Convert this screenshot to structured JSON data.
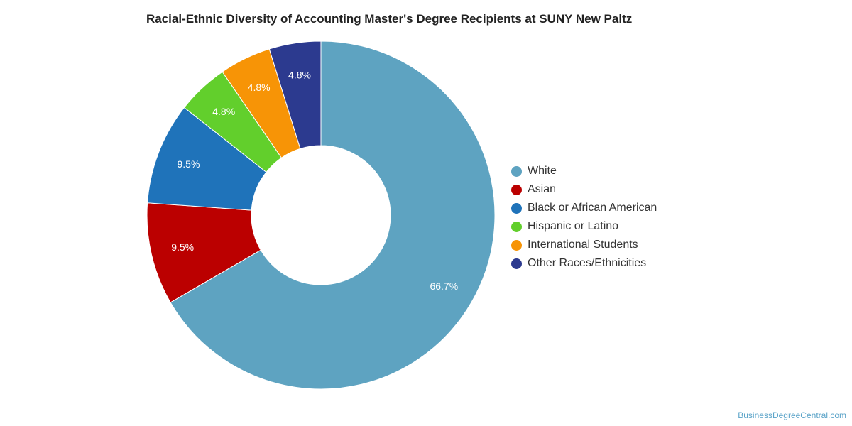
{
  "chart_data": {
    "type": "pie",
    "donut": true,
    "title": "Racial-Ethnic Diversity of Accounting Master's Degree Recipients at SUNY New Paltz",
    "categories": [
      "White",
      "Asian",
      "Black or African American",
      "Hispanic or Latino",
      "International Students",
      "Other Races/Ethnicities"
    ],
    "values": [
      66.7,
      9.5,
      9.5,
      4.8,
      4.8,
      4.8
    ],
    "labels": [
      "66.7%",
      "9.5%",
      "9.5%",
      "4.8%",
      "4.8%",
      "4.8%"
    ],
    "colors": [
      "#5ea3c1",
      "#bb0000",
      "#1f73ba",
      "#62cf2c",
      "#f79406",
      "#2c3a8f"
    ],
    "legend_position": "right"
  },
  "watermark": "BusinessDegreeCentral.com"
}
